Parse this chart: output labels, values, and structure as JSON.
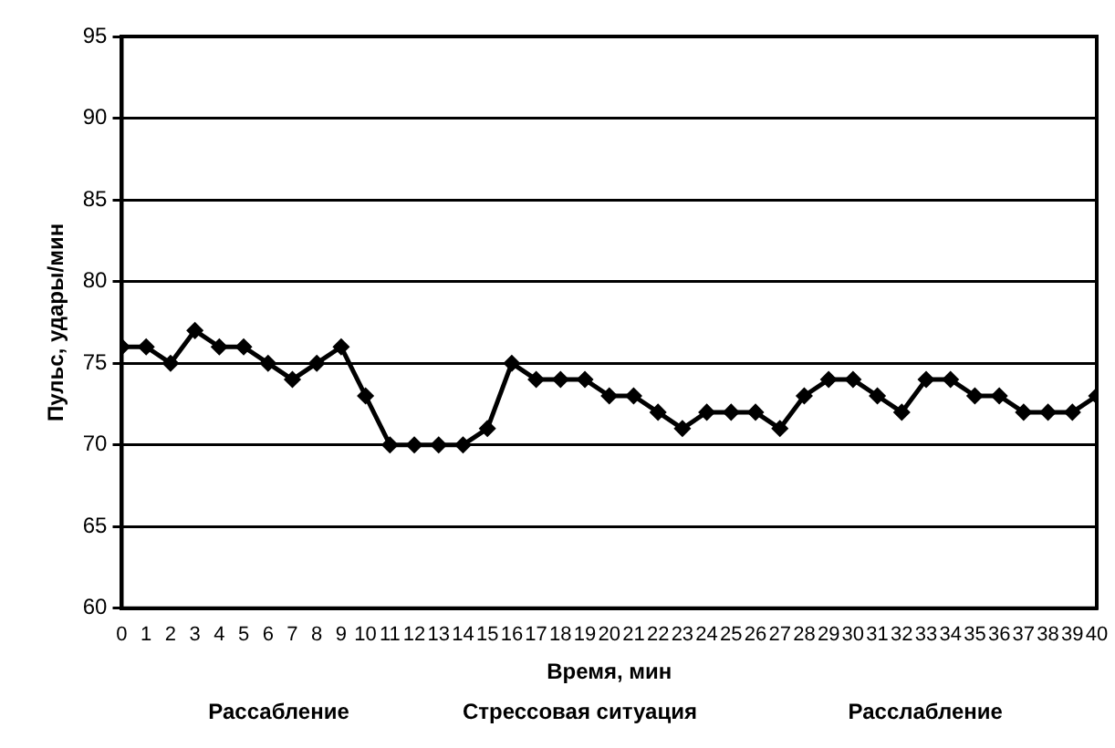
{
  "chart_data": {
    "type": "line",
    "xlabel": "Время, мин",
    "ylabel": "Пульс, удары/мин",
    "x": [
      0,
      1,
      2,
      3,
      4,
      5,
      6,
      7,
      8,
      9,
      10,
      11,
      12,
      13,
      14,
      15,
      16,
      17,
      18,
      19,
      20,
      21,
      22,
      23,
      24,
      25,
      26,
      27,
      28,
      29,
      30,
      31,
      32,
      33,
      34,
      35,
      36,
      37,
      38,
      39,
      40
    ],
    "series": [
      {
        "color": "#000000",
        "values": [
          76,
          76,
          75,
          77,
          76,
          76,
          75,
          74,
          75,
          76,
          73,
          70,
          70,
          70,
          70,
          71,
          75,
          74,
          74,
          74,
          73,
          73,
          72,
          71,
          72,
          72,
          72,
          71,
          73,
          74,
          74,
          73,
          72,
          74,
          74,
          73,
          73,
          72,
          72,
          72,
          73
        ]
      }
    ],
    "xlim": [
      0,
      40
    ],
    "xticks": [
      0,
      1,
      2,
      3,
      4,
      5,
      6,
      7,
      8,
      9,
      10,
      11,
      12,
      13,
      14,
      15,
      16,
      17,
      18,
      19,
      20,
      21,
      22,
      23,
      24,
      25,
      26,
      27,
      28,
      29,
      30,
      31,
      32,
      33,
      34,
      35,
      36,
      37,
      38,
      39,
      40
    ],
    "ylim": [
      60,
      95
    ],
    "yticks": [
      60,
      65,
      70,
      75,
      80,
      85,
      90,
      95
    ],
    "grid": "y",
    "legend": false,
    "marker": "diamond",
    "line_style": "solid",
    "annotations": [
      "Рассабление",
      "Стрессовая ситуация",
      "Расслабление"
    ]
  }
}
